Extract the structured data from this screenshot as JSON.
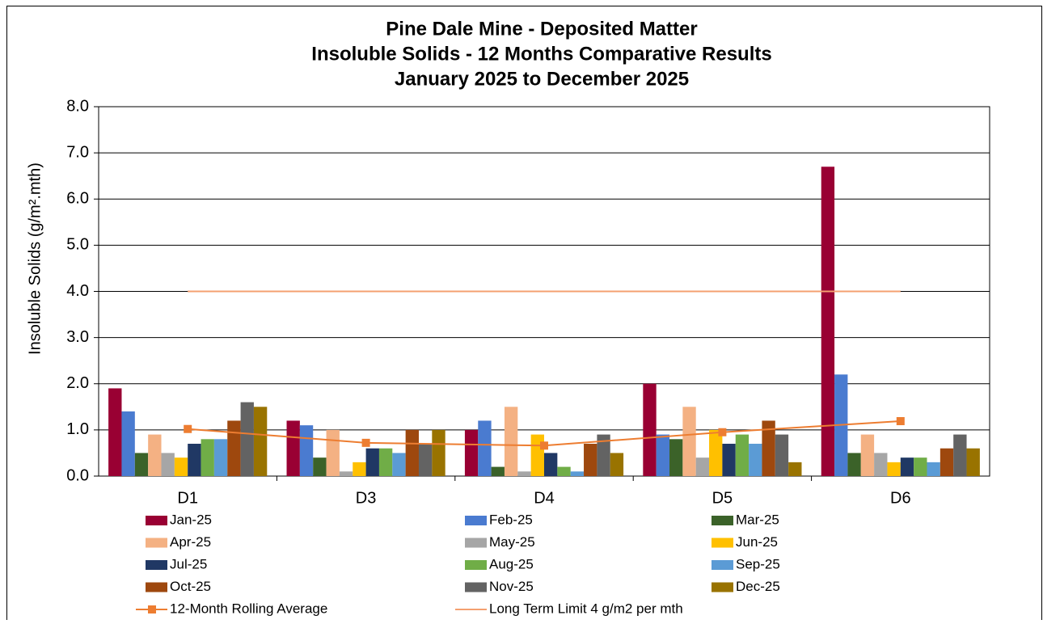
{
  "chart_data": {
    "type": "bar",
    "title": [
      "Pine Dale Mine - Deposited Matter",
      "Insoluble Solids - 12 Months Comparative Results",
      "January 2025 to December 2025"
    ],
    "y_label": "Insoluble Solids (g/m².mth)",
    "categories": [
      "D1",
      "D3",
      "D4",
      "D5",
      "D6"
    ],
    "ylim": [
      0,
      8
    ],
    "yticks": [
      {
        "value": 0,
        "label": "0.0"
      },
      {
        "value": 1,
        "label": "1.0"
      },
      {
        "value": 2,
        "label": "2.0"
      },
      {
        "value": 3,
        "label": "3.0"
      },
      {
        "value": 4,
        "label": "4.0"
      },
      {
        "value": 5,
        "label": "5.0"
      },
      {
        "value": 6,
        "label": "6.0"
      },
      {
        "value": 7,
        "label": "7.0"
      },
      {
        "value": 8,
        "label": "8.0"
      }
    ],
    "grid": true,
    "series": [
      {
        "name": "Jan-25",
        "color": "#990033",
        "values": [
          1.9,
          1.2,
          1.0,
          2.0,
          6.7
        ]
      },
      {
        "name": "Feb-25",
        "color": "#4a7bd0",
        "values": [
          1.4,
          1.1,
          1.2,
          0.9,
          2.2
        ]
      },
      {
        "name": "Mar-25",
        "color": "#3b6229",
        "values": [
          0.5,
          0.4,
          0.2,
          0.8,
          0.5
        ]
      },
      {
        "name": "Apr-25",
        "color": "#f4b183",
        "values": [
          0.9,
          1.0,
          1.5,
          1.5,
          0.9
        ]
      },
      {
        "name": "May-25",
        "color": "#a6a6a6",
        "values": [
          0.5,
          0.1,
          0.1,
          0.4,
          0.5
        ]
      },
      {
        "name": "Jun-25",
        "color": "#ffc000",
        "values": [
          0.4,
          0.3,
          0.9,
          1.0,
          0.3
        ]
      },
      {
        "name": "Jul-25",
        "color": "#203864",
        "values": [
          0.7,
          0.6,
          0.5,
          0.7,
          0.4
        ]
      },
      {
        "name": "Aug-25",
        "color": "#70ad47",
        "values": [
          0.8,
          0.6,
          0.2,
          0.9,
          0.4
        ]
      },
      {
        "name": "Sep-25",
        "color": "#5b9bd5",
        "values": [
          0.8,
          0.5,
          0.1,
          0.7,
          0.3
        ]
      },
      {
        "name": "Oct-25",
        "color": "#9e480e",
        "values": [
          1.2,
          1.0,
          0.7,
          1.2,
          0.6
        ]
      },
      {
        "name": "Nov-25",
        "color": "#636363",
        "values": [
          1.6,
          0.7,
          0.9,
          0.9,
          0.9
        ]
      },
      {
        "name": "Dec-25",
        "color": "#997300",
        "values": [
          1.5,
          1.0,
          0.5,
          0.3,
          0.6
        ]
      }
    ],
    "lines": [
      {
        "name": "12-Month Rolling Average",
        "color": "#ed7d31",
        "marker": true,
        "values": [
          1.02,
          0.72,
          0.66,
          0.95,
          1.19
        ]
      },
      {
        "name": "Long Term Limit 4 g/m2 per mth",
        "color": "#f4a070",
        "marker": false,
        "values": [
          4,
          4,
          4,
          4,
          4
        ]
      }
    ]
  }
}
